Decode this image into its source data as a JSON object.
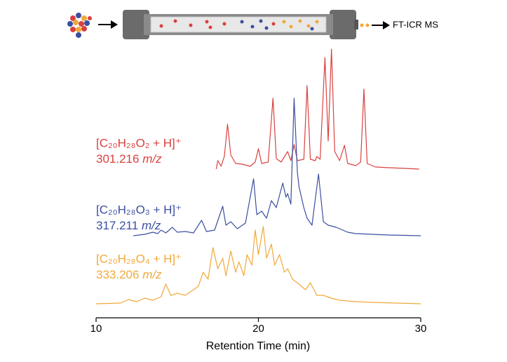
{
  "chart_data": {
    "type": "line",
    "xlabel": "Retention Time (min)",
    "detector_label": "FT-ICR MS",
    "xlim": [
      10,
      30
    ],
    "xticks": [
      10,
      20,
      30
    ],
    "ylim": [
      0,
      200
    ],
    "series": [
      {
        "name": "[C₂₀H₂₈O₂ + H]⁺",
        "mass": "301.216",
        "unit": "m/z",
        "color": "#d9413f",
        "x": [
          17.4,
          17.5,
          17.7,
          17.9,
          18.1,
          18.3,
          18.6,
          19.0,
          19.5,
          19.8,
          20.0,
          20.2,
          20.6,
          20.9,
          21.1,
          21.4,
          21.8,
          22.0,
          22.2,
          22.4,
          22.8,
          23.0,
          23.2,
          23.5,
          23.6,
          23.8,
          24.1,
          24.3,
          24.5,
          24.7,
          25.0,
          25.3,
          25.5,
          26.0,
          26.3,
          26.5,
          26.7,
          27.2,
          28.0,
          29.0,
          29.9
        ],
        "values": [
          0,
          12,
          4,
          18,
          64,
          20,
          8,
          7,
          4,
          10,
          29,
          8,
          10,
          101,
          15,
          10,
          25,
          12,
          35,
          12,
          14,
          119,
          14,
          12,
          18,
          14,
          159,
          40,
          171,
          25,
          12,
          34,
          8,
          5,
          10,
          114,
          8,
          3,
          2,
          1,
          0
        ]
      },
      {
        "name": "[C₂₀H₂₈O₃ + H]⁺",
        "mass": "317.211",
        "unit": "m/z",
        "color": "#3b4fa0",
        "x": [
          12.3,
          13.0,
          13.5,
          13.8,
          14.0,
          14.3,
          14.7,
          15.0,
          15.5,
          16.0,
          16.5,
          16.8,
          17.3,
          17.8,
          18.0,
          18.3,
          18.7,
          19.2,
          19.7,
          19.9,
          20.2,
          20.5,
          20.8,
          21.1,
          21.5,
          21.7,
          21.8,
          22.0,
          22.2,
          22.4,
          22.5,
          22.8,
          23.0,
          23.3,
          23.7,
          24.0,
          24.3,
          24.8,
          25.5,
          26.0,
          27.0,
          28.0,
          30.0
        ],
        "values": [
          0,
          2,
          5,
          3,
          8,
          4,
          12,
          5,
          6,
          4,
          22,
          6,
          8,
          42,
          15,
          20,
          10,
          18,
          81,
          30,
          35,
          25,
          50,
          40,
          75,
          55,
          60,
          45,
          196,
          90,
          70,
          40,
          25,
          15,
          88,
          20,
          15,
          12,
          5,
          3,
          2,
          1,
          0
        ]
      },
      {
        "name": "[C₂₀H₂₈O₄ + H]⁺",
        "mass": "333.206",
        "unit": "m/z",
        "color": "#f0a93a",
        "x": [
          10.0,
          11.5,
          12.0,
          12.5,
          13.0,
          13.5,
          14.0,
          14.3,
          14.6,
          15.0,
          15.5,
          16.0,
          16.3,
          16.6,
          16.9,
          17.2,
          17.5,
          17.8,
          18.0,
          18.3,
          18.6,
          18.8,
          19.1,
          19.3,
          19.6,
          19.8,
          20.0,
          20.3,
          20.5,
          20.8,
          21.0,
          21.3,
          21.6,
          21.8,
          22.1,
          22.5,
          22.9,
          23.2,
          23.6,
          24.0,
          24.5,
          25.0,
          26.0,
          27.0,
          30.0
        ],
        "values": [
          0,
          1,
          6,
          3,
          8,
          5,
          10,
          28,
          12,
          15,
          12,
          20,
          25,
          45,
          35,
          80,
          50,
          65,
          40,
          75,
          45,
          60,
          40,
          70,
          55,
          105,
          70,
          110,
          65,
          85,
          55,
          70,
          45,
          50,
          35,
          28,
          20,
          30,
          12,
          12,
          8,
          5,
          3,
          2,
          0
        ]
      }
    ]
  }
}
